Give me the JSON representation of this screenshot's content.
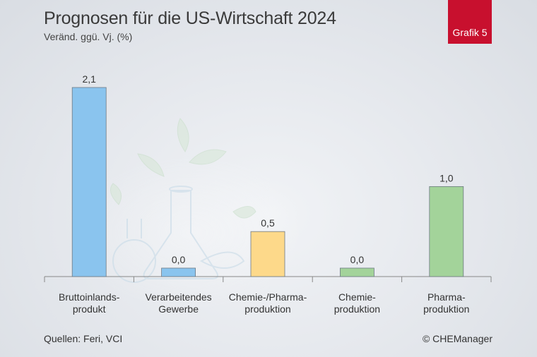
{
  "header": {
    "title": "Prognosen für die US-Wirtschaft 2024",
    "subtitle": "Veränd. ggü. Vj. (%)",
    "badge": "Grafik 5"
  },
  "footer": {
    "source": "Quellen: Feri, VCI",
    "copyright": "© CHEManager"
  },
  "colors": {
    "blue": "#8ac4ee",
    "yellow": "#fdd98a",
    "green": "#a3d39a",
    "badge": "#c8102e"
  },
  "chart_data": {
    "type": "bar",
    "categories": [
      [
        "Bruttoinlands-",
        "produkt"
      ],
      [
        "Verarbeitendes",
        "Gewerbe"
      ],
      [
        "Chemie-/Pharma-",
        "produktion"
      ],
      [
        "Chemie-",
        "produktion"
      ],
      [
        "Pharma-",
        "produktion"
      ]
    ],
    "values": [
      2.1,
      0.0,
      0.5,
      0.0,
      1.0
    ],
    "value_labels": [
      "2,1",
      "0,0",
      "0,5",
      "0,0",
      "1,0"
    ],
    "bar_colors": [
      "#8ac4ee",
      "#8ac4ee",
      "#fdd98a",
      "#a3d39a",
      "#a3d39a"
    ],
    "title": "Prognosen für die US-Wirtschaft 2024",
    "ylabel": "Veränd. ggü. Vj. (%)",
    "ylim": [
      0,
      2.1
    ],
    "grid": false
  }
}
